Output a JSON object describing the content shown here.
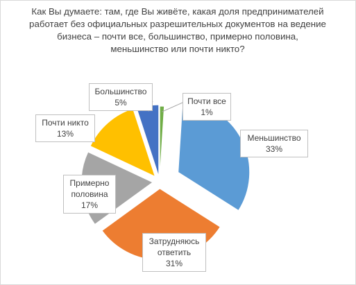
{
  "chart_data": {
    "type": "pie",
    "exploded": true,
    "title": "Как Вы думаете: там, где Вы живёте, какая доля предпринимателей работает без официальных разрешительных документов на ведение бизнеса – почти все, большинство, примерно половина, меньшинство или почти никто?",
    "slices": [
      {
        "name": "Почти все",
        "value": 1,
        "display": "1%",
        "color": "#70ad47"
      },
      {
        "name": "Меньшинство",
        "value": 33,
        "display": "33%",
        "color": "#5b9bd5"
      },
      {
        "name": "Затрудняюсь ответить",
        "value": 31,
        "display": "31%",
        "color": "#ed7d31"
      },
      {
        "name": "Примерно половина",
        "value": 17,
        "display": "17%",
        "color": "#a5a5a5"
      },
      {
        "name": "Почти никто",
        "value": 13,
        "display": "13%",
        "color": "#ffc000"
      },
      {
        "name": "Большинство",
        "value": 5,
        "display": "5%",
        "color": "#4472c4"
      }
    ],
    "legend": "none"
  },
  "labels": {
    "pochti_vse": [
      "Почти все",
      "1%"
    ],
    "menshinstvo": [
      "Меньшинство",
      "33%"
    ],
    "zatrudnyayus": [
      "Затрудняюсь",
      "ответить",
      "31%"
    ],
    "polovina": [
      "Примерно",
      "половина",
      "17%"
    ],
    "pochti_nikto": [
      "Почти никто",
      "13%"
    ],
    "bolshinstvo": [
      "Большинство",
      "5%"
    ]
  }
}
